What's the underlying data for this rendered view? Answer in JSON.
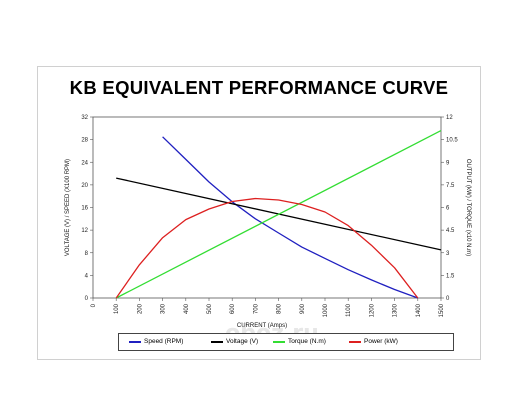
{
  "chart_data": {
    "type": "line",
    "title": "KB EQUIVALENT PERFORMANCE CURVE",
    "xlabel": "CURRENT (Amps)",
    "ylabel": "VOLTAGE (V) / SPEED (X100 RPM)",
    "y2label": "OUTPUT (kW) / TORQUE (x10 N.m)",
    "xlim": [
      0,
      1500
    ],
    "ylim": [
      0,
      32
    ],
    "y2lim": [
      0,
      12
    ],
    "x_ticks": [
      0,
      100,
      200,
      300,
      400,
      500,
      600,
      700,
      800,
      900,
      1000,
      1100,
      1200,
      1300,
      1400,
      1500
    ],
    "y_ticks": [
      0,
      4,
      8,
      12,
      16,
      20,
      24,
      28,
      32
    ],
    "y2_ticks": [
      "0",
      "1.5",
      "3",
      "4.5",
      "6",
      "7.5",
      "9",
      "10.5",
      "12"
    ],
    "y2_tick_values": [
      0,
      1.5,
      3,
      4.5,
      6,
      7.5,
      9,
      10.5,
      12
    ],
    "grid": false,
    "legend_position": "bottom",
    "series": [
      {
        "name": "Speed (RPM)",
        "color": "#2020c0",
        "axis": "left",
        "x": [
          300,
          400,
          500,
          600,
          700,
          800,
          900,
          1000,
          1100,
          1200,
          1300,
          1400
        ],
        "values": [
          28.5,
          24.5,
          20.5,
          17.0,
          14.0,
          11.5,
          9.0,
          7.0,
          5.0,
          3.2,
          1.5,
          0
        ]
      },
      {
        "name": "Voltage (V)",
        "color": "#000000",
        "axis": "left",
        "x": [
          100,
          1500
        ],
        "values": [
          21.2,
          8.5
        ]
      },
      {
        "name": "Torque (N.m)",
        "color": "#33dd33",
        "axis": "right",
        "x": [
          100,
          1500
        ],
        "values": [
          0,
          11.1
        ]
      },
      {
        "name": "Power (kW)",
        "color": "#dd2020",
        "axis": "right",
        "x": [
          100,
          200,
          300,
          400,
          500,
          600,
          700,
          800,
          900,
          1000,
          1100,
          1200,
          1300,
          1400
        ],
        "values": [
          0,
          2.2,
          4.0,
          5.2,
          5.9,
          6.4,
          6.6,
          6.5,
          6.2,
          5.7,
          4.8,
          3.5,
          2.0,
          0
        ]
      }
    ]
  },
  "watermark": "oboz.ru"
}
